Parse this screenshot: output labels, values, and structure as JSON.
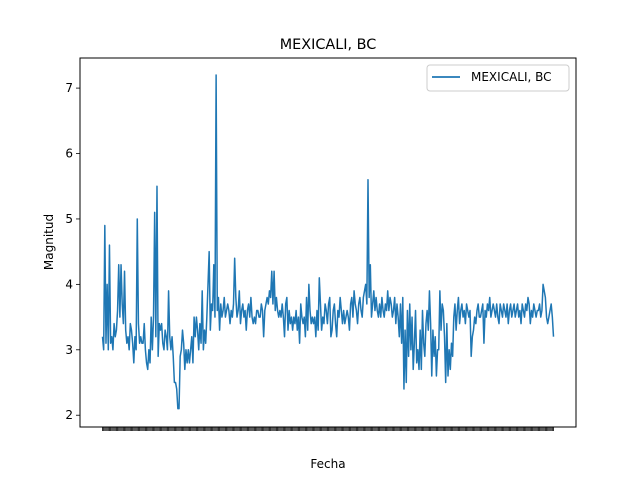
{
  "chart_data": {
    "type": "line",
    "title": "MEXICALI, BC",
    "xlabel": "Fecha",
    "ylabel": "Magnitud",
    "ylim": [
      1.82,
      7.46
    ],
    "yticks": [
      2,
      3,
      4,
      5,
      6,
      7
    ],
    "grid": false,
    "legend_position": "top-right",
    "series": [
      {
        "name": "MEXICALI, BC",
        "color": "#1f77b4",
        "values": [
          3.2,
          3.0,
          4.9,
          3.1,
          4.0,
          3.0,
          4.6,
          3.1,
          3.2,
          3.0,
          3.4,
          3.2,
          3.3,
          3.6,
          4.3,
          3.5,
          4.3,
          3.7,
          3.4,
          4.2,
          3.3,
          3.1,
          3.2,
          3.0,
          3.4,
          3.3,
          3.1,
          2.8,
          3.2,
          3.0,
          5.0,
          3.4,
          3.1,
          3.2,
          3.1,
          3.1,
          3.4,
          3.0,
          2.8,
          2.7,
          3.0,
          2.8,
          3.5,
          3.0,
          3.5,
          5.1,
          3.2,
          5.5,
          2.9,
          3.4,
          3.3,
          3.4,
          3.1,
          3.0,
          3.3,
          3.2,
          3.0,
          3.9,
          3.2,
          3.0,
          3.2,
          2.9,
          2.5,
          2.5,
          2.4,
          2.1,
          2.1,
          2.9,
          3.0,
          3.3,
          3.1,
          2.7,
          3.0,
          2.8,
          3.0,
          2.8,
          3.0,
          3.2,
          2.8,
          3.5,
          3.2,
          3.5,
          3.3,
          3.0,
          3.4,
          3.1,
          3.9,
          3.0,
          3.3,
          3.1,
          3.5,
          4.0,
          4.5,
          3.3,
          3.7,
          3.6,
          4.3,
          3.5,
          7.2,
          3.6,
          3.8,
          3.3,
          3.7,
          3.5,
          3.6,
          3.8,
          3.5,
          3.6,
          3.7,
          3.6,
          3.4,
          3.6,
          3.5,
          3.7,
          4.4,
          3.8,
          3.5,
          3.6,
          3.9,
          3.4,
          3.6,
          3.7,
          3.5,
          3.6,
          3.3,
          3.6,
          3.7,
          3.5,
          3.8,
          3.5,
          3.4,
          3.5,
          3.4,
          3.6,
          3.6,
          3.5,
          3.5,
          3.7,
          3.6,
          3.2,
          3.6,
          3.7,
          3.8,
          3.7,
          3.9,
          3.8,
          4.2,
          3.7,
          4.2,
          3.6,
          3.8,
          3.6,
          3.5,
          3.6,
          3.5,
          3.7,
          3.5,
          3.2,
          3.7,
          3.8,
          3.3,
          3.6,
          3.4,
          3.5,
          3.3,
          3.5,
          3.4,
          3.6,
          3.3,
          3.5,
          3.1,
          3.7,
          3.5,
          3.4,
          3.5,
          3.2,
          3.8,
          3.3,
          4.0,
          3.6,
          3.4,
          3.5,
          3.4,
          3.5,
          3.2,
          3.6,
          3.3,
          4.1,
          3.7,
          3.3,
          3.5,
          3.4,
          3.7,
          3.6,
          3.4,
          3.7,
          3.8,
          3.2,
          3.3,
          3.6,
          3.7,
          3.4,
          3.2,
          3.6,
          3.5,
          3.8,
          3.6,
          3.4,
          3.6,
          3.4,
          3.5,
          3.6,
          3.5,
          3.3,
          3.7,
          3.8,
          3.5,
          3.9,
          3.7,
          3.6,
          3.4,
          3.7,
          3.8,
          3.6,
          3.5,
          3.8,
          3.9,
          4.0,
          3.7,
          5.6,
          3.8,
          4.3,
          3.5,
          3.7,
          3.9,
          3.6,
          3.8,
          3.6,
          3.5,
          3.7,
          3.5,
          3.8,
          3.6,
          3.5,
          3.7,
          3.6,
          3.9,
          3.6,
          3.8,
          3.7,
          3.5,
          3.6,
          3.8,
          3.4,
          3.7,
          3.5,
          3.2,
          3.7,
          3.1,
          3.8,
          2.4,
          3.3,
          2.5,
          3.6,
          2.9,
          3.7,
          3.0,
          3.5,
          2.7,
          3.1,
          3.6,
          2.8,
          3.0,
          2.7,
          3.3,
          2.7,
          3.6,
          3.1,
          2.9,
          3.4,
          3.6,
          3.3,
          3.9,
          3.4,
          2.6,
          3.3,
          2.9,
          3.2,
          2.6,
          3.0,
          3.0,
          3.9,
          3.3,
          3.7,
          3.6,
          3.2,
          2.5,
          3.4,
          2.6,
          3.0,
          2.7,
          3.1,
          2.9,
          3.5,
          3.7,
          3.3,
          3.6,
          3.8,
          3.4,
          3.6,
          3.7,
          3.5,
          3.6,
          3.4,
          3.7,
          3.6,
          3.5,
          3.6,
          2.9,
          3.2,
          3.3,
          3.5,
          3.4,
          3.6,
          3.7,
          3.5,
          3.5,
          3.6,
          3.7,
          3.1,
          3.6,
          3.5,
          3.7,
          3.6,
          3.8,
          3.5,
          3.6,
          3.7,
          3.6,
          3.5,
          3.7,
          3.5,
          3.4,
          3.7,
          3.6,
          3.5,
          3.7,
          3.6,
          3.5,
          3.7,
          3.4,
          3.6,
          3.7,
          3.5,
          3.6,
          3.7,
          3.5,
          3.6,
          3.7,
          3.5,
          3.6,
          3.4,
          3.7,
          3.6,
          3.5,
          3.7,
          3.6,
          3.8,
          3.7,
          3.4,
          3.6,
          3.5,
          3.7,
          3.6,
          3.5,
          3.6,
          3.6,
          3.7,
          3.5,
          3.6,
          4.0,
          3.9,
          3.8,
          3.5,
          3.4,
          3.5,
          3.6,
          3.7,
          3.5,
          3.2
        ]
      }
    ]
  }
}
